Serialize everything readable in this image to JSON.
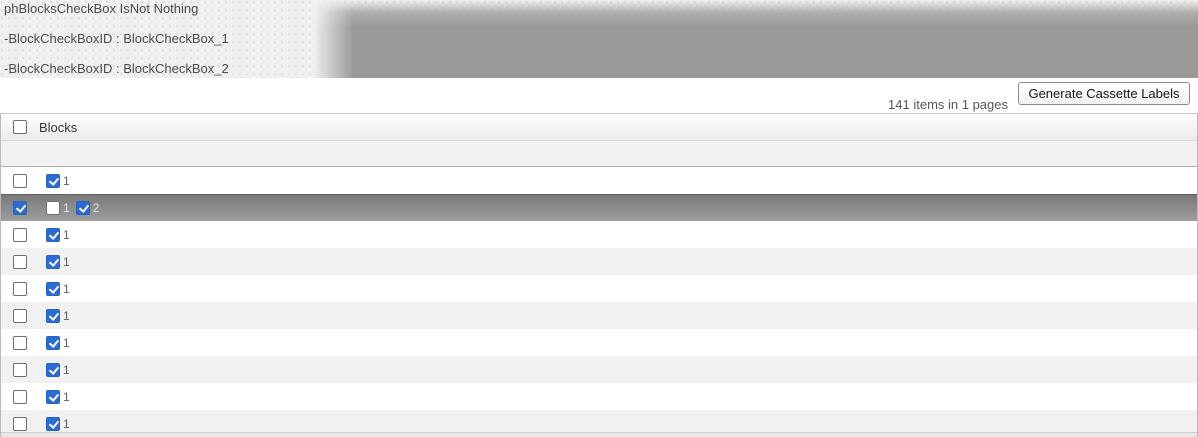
{
  "debug_panel": {
    "lines": [
      "phBlocksCheckBox IsNot Nothing",
      "-BlockCheckBoxID : BlockCheckBox_1",
      "-BlockCheckBoxID : BlockCheckBox_2"
    ]
  },
  "toolbar": {
    "items_summary": "141 items in 1 pages",
    "generate_button_label": "Generate Cassette Labels"
  },
  "grid": {
    "header": {
      "column_label": "Blocks",
      "select_all_checked": false
    },
    "rows": [
      {
        "row_checked": false,
        "selected": false,
        "blocks": [
          {
            "label": "1",
            "checked": true
          }
        ]
      },
      {
        "row_checked": true,
        "selected": true,
        "blocks": [
          {
            "label": "1",
            "checked": false
          },
          {
            "label": "2",
            "checked": true
          }
        ]
      },
      {
        "row_checked": false,
        "selected": false,
        "blocks": [
          {
            "label": "1",
            "checked": true
          }
        ]
      },
      {
        "row_checked": false,
        "selected": false,
        "blocks": [
          {
            "label": "1",
            "checked": true
          }
        ]
      },
      {
        "row_checked": false,
        "selected": false,
        "blocks": [
          {
            "label": "1",
            "checked": true
          }
        ]
      },
      {
        "row_checked": false,
        "selected": false,
        "blocks": [
          {
            "label": "1",
            "checked": true
          }
        ]
      },
      {
        "row_checked": false,
        "selected": false,
        "blocks": [
          {
            "label": "1",
            "checked": true
          }
        ]
      },
      {
        "row_checked": false,
        "selected": false,
        "blocks": [
          {
            "label": "1",
            "checked": true
          }
        ]
      },
      {
        "row_checked": false,
        "selected": false,
        "blocks": [
          {
            "label": "1",
            "checked": true
          }
        ]
      },
      {
        "row_checked": false,
        "selected": false,
        "blocks": [
          {
            "label": "1",
            "checked": true
          }
        ]
      }
    ]
  },
  "colors": {
    "checkbox_accent": "#2b6cd4",
    "selected_row_gray": "#8a8a8a",
    "alt_row_gray": "#f1f1f1"
  }
}
